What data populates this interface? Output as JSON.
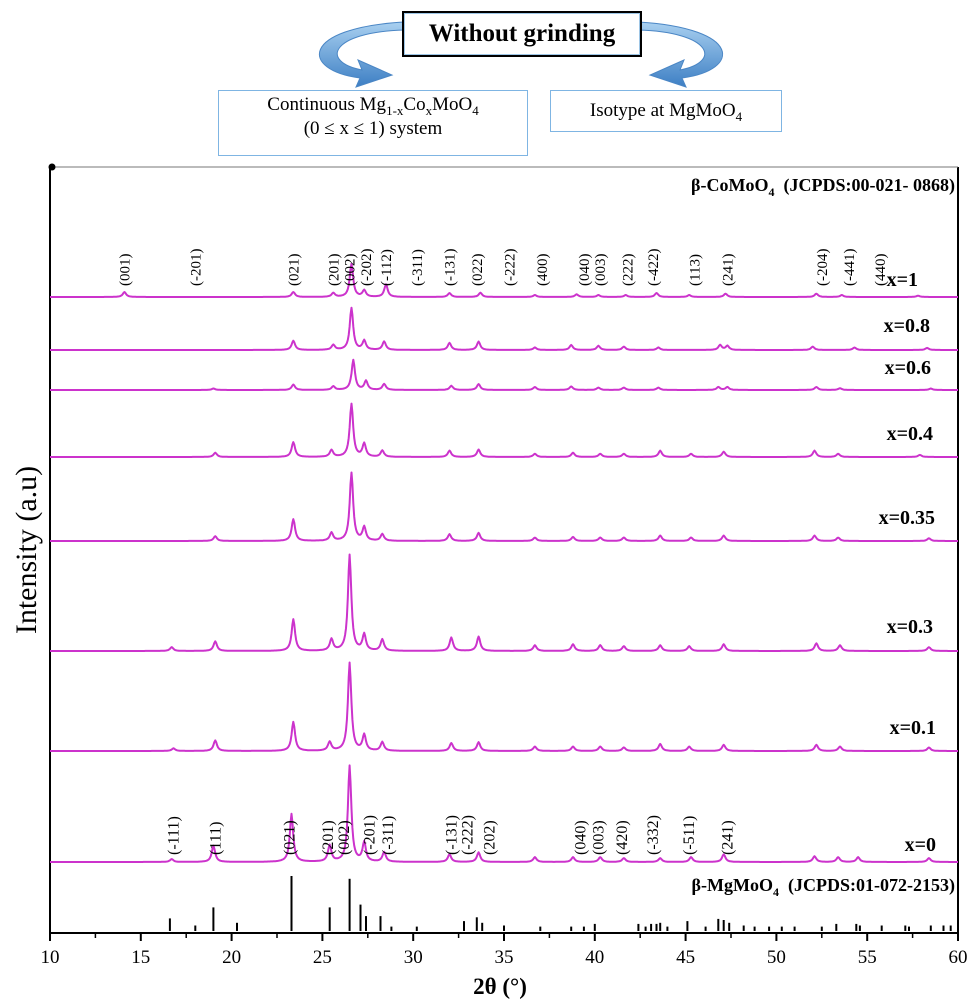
{
  "header": {
    "title": "Without grinding",
    "left_box": {
      "line1_prefix": "Continuous Mg",
      "sub1": "1-x",
      "co": "Co",
      "sub2": "x",
      "moo": "MoO",
      "sub3": "4",
      "line2": "(0 ≤ x ≤ 1) system"
    },
    "right_box": {
      "prefix": "Isotype at MgMoO",
      "sub": "4"
    }
  },
  "colors": {
    "trace": "#cc33cc",
    "axis": "#000000",
    "arrow": "#5b9bd5",
    "box_border": "#7fb5e3"
  },
  "icons": {
    "left_arrow": "curved-arrow-left-icon",
    "right_arrow": "curved-arrow-right-icon"
  },
  "chart_data": {
    "type": "line",
    "xlabel": "2θ (°)",
    "ylabel": "Intensity (a.u)",
    "xlim": [
      10,
      60
    ],
    "xticks": [
      10,
      15,
      20,
      25,
      30,
      35,
      40,
      45,
      50,
      55,
      60
    ],
    "grid": false,
    "top_reference": {
      "label": "β-CoMoO",
      "sub": "4",
      "suffix": "  (JCPDS:00-021- 0868)"
    },
    "bottom_reference": {
      "label": "β-MgMoO",
      "sub": "4",
      "suffix": "  (JCPDS:01-072-2153)"
    },
    "series": [
      {
        "name": "x=1",
        "peaks": [
          [
            14.1,
            0.15
          ],
          [
            23.4,
            0.15
          ],
          [
            25.6,
            0.12
          ],
          [
            26.6,
            1.0
          ],
          [
            27.3,
            0.2
          ],
          [
            28.5,
            0.38
          ],
          [
            32.0,
            0.12
          ],
          [
            33.7,
            0.13
          ],
          [
            36.7,
            0.06
          ],
          [
            39.0,
            0.08
          ],
          [
            40.2,
            0.06
          ],
          [
            41.7,
            0.06
          ],
          [
            43.4,
            0.12
          ],
          [
            45.2,
            0.06
          ],
          [
            47.2,
            0.1
          ],
          [
            52.2,
            0.1
          ],
          [
            53.6,
            0.06
          ],
          [
            57.8,
            0.04
          ]
        ]
      },
      {
        "name": "x=0.8",
        "peaks": [
          [
            23.4,
            0.22
          ],
          [
            25.6,
            0.12
          ],
          [
            26.6,
            1.0
          ],
          [
            27.3,
            0.22
          ],
          [
            28.4,
            0.2
          ],
          [
            32.0,
            0.17
          ],
          [
            33.6,
            0.2
          ],
          [
            36.7,
            0.06
          ],
          [
            38.7,
            0.12
          ],
          [
            40.2,
            0.1
          ],
          [
            41.6,
            0.08
          ],
          [
            43.5,
            0.06
          ],
          [
            46.9,
            0.12
          ],
          [
            47.3,
            0.1
          ],
          [
            52.0,
            0.08
          ],
          [
            54.3,
            0.06
          ],
          [
            58.3,
            0.05
          ]
        ]
      },
      {
        "name": "x=0.6",
        "peaks": [
          [
            19.0,
            0.05
          ],
          [
            23.4,
            0.18
          ],
          [
            25.6,
            0.12
          ],
          [
            26.7,
            1.0
          ],
          [
            27.4,
            0.3
          ],
          [
            28.4,
            0.2
          ],
          [
            32.1,
            0.14
          ],
          [
            33.6,
            0.2
          ],
          [
            36.7,
            0.1
          ],
          [
            38.7,
            0.12
          ],
          [
            40.2,
            0.08
          ],
          [
            41.6,
            0.08
          ],
          [
            43.5,
            0.08
          ],
          [
            46.8,
            0.1
          ],
          [
            47.3,
            0.1
          ],
          [
            52.2,
            0.1
          ],
          [
            53.5,
            0.06
          ],
          [
            58.5,
            0.05
          ]
        ]
      },
      {
        "name": "x=0.4",
        "peaks": [
          [
            19.1,
            0.08
          ],
          [
            23.4,
            0.28
          ],
          [
            25.5,
            0.13
          ],
          [
            26.6,
            1.0
          ],
          [
            27.3,
            0.25
          ],
          [
            28.3,
            0.12
          ],
          [
            32.0,
            0.12
          ],
          [
            33.6,
            0.14
          ],
          [
            36.7,
            0.06
          ],
          [
            38.8,
            0.08
          ],
          [
            40.3,
            0.06
          ],
          [
            41.6,
            0.06
          ],
          [
            43.6,
            0.12
          ],
          [
            45.3,
            0.06
          ],
          [
            47.1,
            0.1
          ],
          [
            52.1,
            0.12
          ],
          [
            53.4,
            0.06
          ],
          [
            57.9,
            0.04
          ]
        ]
      },
      {
        "name": "x=0.35",
        "peaks": [
          [
            19.1,
            0.07
          ],
          [
            23.4,
            0.32
          ],
          [
            25.5,
            0.12
          ],
          [
            26.6,
            1.0
          ],
          [
            27.3,
            0.2
          ],
          [
            28.3,
            0.1
          ],
          [
            32.0,
            0.1
          ],
          [
            33.6,
            0.12
          ],
          [
            36.7,
            0.05
          ],
          [
            38.8,
            0.06
          ],
          [
            40.3,
            0.05
          ],
          [
            41.6,
            0.05
          ],
          [
            43.6,
            0.08
          ],
          [
            45.3,
            0.05
          ],
          [
            47.1,
            0.08
          ],
          [
            52.1,
            0.08
          ],
          [
            53.4,
            0.05
          ],
          [
            58.4,
            0.04
          ]
        ]
      },
      {
        "name": "x=0.3",
        "peaks": [
          [
            16.7,
            0.04
          ],
          [
            19.1,
            0.1
          ],
          [
            23.4,
            0.33
          ],
          [
            25.5,
            0.12
          ],
          [
            26.5,
            1.0
          ],
          [
            27.3,
            0.17
          ],
          [
            28.3,
            0.12
          ],
          [
            32.1,
            0.14
          ],
          [
            33.6,
            0.15
          ],
          [
            36.7,
            0.06
          ],
          [
            38.8,
            0.07
          ],
          [
            40.3,
            0.06
          ],
          [
            41.6,
            0.05
          ],
          [
            43.6,
            0.06
          ],
          [
            45.2,
            0.05
          ],
          [
            47.1,
            0.07
          ],
          [
            52.2,
            0.08
          ],
          [
            53.5,
            0.06
          ],
          [
            58.4,
            0.04
          ]
        ]
      },
      {
        "name": "x=0.1",
        "peaks": [
          [
            16.8,
            0.03
          ],
          [
            19.1,
            0.12
          ],
          [
            23.4,
            0.33
          ],
          [
            25.4,
            0.1
          ],
          [
            26.5,
            1.0
          ],
          [
            27.3,
            0.18
          ],
          [
            28.3,
            0.1
          ],
          [
            32.1,
            0.09
          ],
          [
            33.6,
            0.1
          ],
          [
            36.7,
            0.05
          ],
          [
            38.8,
            0.05
          ],
          [
            40.3,
            0.05
          ],
          [
            41.6,
            0.04
          ],
          [
            43.6,
            0.08
          ],
          [
            45.2,
            0.05
          ],
          [
            47.1,
            0.07
          ],
          [
            52.2,
            0.07
          ],
          [
            53.5,
            0.05
          ],
          [
            58.4,
            0.04
          ]
        ]
      },
      {
        "name": "x=0",
        "peaks": [
          [
            16.7,
            0.03
          ],
          [
            19.0,
            0.17
          ],
          [
            23.3,
            0.5
          ],
          [
            25.4,
            0.17
          ],
          [
            26.5,
            1.0
          ],
          [
            27.3,
            0.2
          ],
          [
            28.4,
            0.1
          ],
          [
            32.0,
            0.08
          ],
          [
            33.6,
            0.1
          ],
          [
            36.7,
            0.05
          ],
          [
            38.8,
            0.05
          ],
          [
            40.3,
            0.05
          ],
          [
            41.6,
            0.04
          ],
          [
            43.6,
            0.04
          ],
          [
            45.3,
            0.05
          ],
          [
            47.1,
            0.08
          ],
          [
            52.1,
            0.06
          ],
          [
            53.4,
            0.05
          ],
          [
            54.5,
            0.05
          ],
          [
            58.4,
            0.04
          ]
        ]
      }
    ],
    "top_hkl_labels": [
      [
        14.1,
        "(001)"
      ],
      [
        18.0,
        "(-201)"
      ],
      [
        23.4,
        "(021)"
      ],
      [
        25.6,
        "(201)"
      ],
      [
        26.5,
        "(002)"
      ],
      [
        27.4,
        "(-202)"
      ],
      [
        28.5,
        "(-112)"
      ],
      [
        30.2,
        "(-311)"
      ],
      [
        32.0,
        "(-131)"
      ],
      [
        33.5,
        "(022)"
      ],
      [
        35.3,
        "(-222)"
      ],
      [
        37.1,
        "(400)"
      ],
      [
        39.4,
        "(040)"
      ],
      [
        40.3,
        "(003)"
      ],
      [
        41.8,
        "(222)"
      ],
      [
        43.2,
        "(-422)"
      ],
      [
        45.5,
        "(113)"
      ],
      [
        47.3,
        "(241)"
      ],
      [
        52.5,
        "(-204)"
      ],
      [
        54.0,
        "(-441)"
      ],
      [
        55.7,
        "(440)"
      ]
    ],
    "bottom_hkl_labels": [
      [
        16.8,
        "(-111)"
      ],
      [
        19.1,
        "(111)"
      ],
      [
        23.2,
        "(021)"
      ],
      [
        25.3,
        "(201)"
      ],
      [
        26.2,
        "(002)"
      ],
      [
        27.6,
        "(-201)"
      ],
      [
        28.6,
        "(-311)"
      ],
      [
        32.1,
        "(-131)"
      ],
      [
        33.0,
        "(-222)"
      ],
      [
        34.2,
        "(202)"
      ],
      [
        39.2,
        "(040)"
      ],
      [
        40.2,
        "(003)"
      ],
      [
        41.5,
        "(420)"
      ],
      [
        43.2,
        "(-332)"
      ],
      [
        45.2,
        "(-511)"
      ],
      [
        47.3,
        "(241)"
      ]
    ],
    "reference_lines": [
      [
        16.6,
        0.23
      ],
      [
        18.0,
        0.1
      ],
      [
        19.0,
        0.43
      ],
      [
        20.3,
        0.15
      ],
      [
        23.3,
        1.0
      ],
      [
        25.4,
        0.43
      ],
      [
        26.5,
        0.95
      ],
      [
        27.1,
        0.48
      ],
      [
        27.4,
        0.27
      ],
      [
        28.2,
        0.27
      ],
      [
        28.8,
        0.08
      ],
      [
        30.2,
        0.08
      ],
      [
        32.8,
        0.18
      ],
      [
        33.5,
        0.25
      ],
      [
        33.8,
        0.15
      ],
      [
        35.0,
        0.1
      ],
      [
        37.0,
        0.08
      ],
      [
        38.7,
        0.08
      ],
      [
        39.4,
        0.08
      ],
      [
        40.0,
        0.13
      ],
      [
        42.4,
        0.13
      ],
      [
        42.8,
        0.08
      ],
      [
        43.1,
        0.13
      ],
      [
        43.4,
        0.13
      ],
      [
        43.6,
        0.15
      ],
      [
        44.0,
        0.08
      ],
      [
        45.1,
        0.18
      ],
      [
        46.1,
        0.08
      ],
      [
        46.8,
        0.22
      ],
      [
        47.1,
        0.2
      ],
      [
        47.4,
        0.15
      ],
      [
        48.2,
        0.1
      ],
      [
        48.8,
        0.08
      ],
      [
        49.6,
        0.08
      ],
      [
        50.3,
        0.08
      ],
      [
        51.0,
        0.08
      ],
      [
        52.5,
        0.08
      ],
      [
        53.3,
        0.13
      ],
      [
        54.4,
        0.13
      ],
      [
        54.6,
        0.1
      ],
      [
        55.8,
        0.1
      ],
      [
        57.1,
        0.1
      ],
      [
        57.3,
        0.08
      ],
      [
        58.5,
        0.1
      ],
      [
        59.2,
        0.1
      ],
      [
        59.6,
        0.1
      ]
    ]
  }
}
